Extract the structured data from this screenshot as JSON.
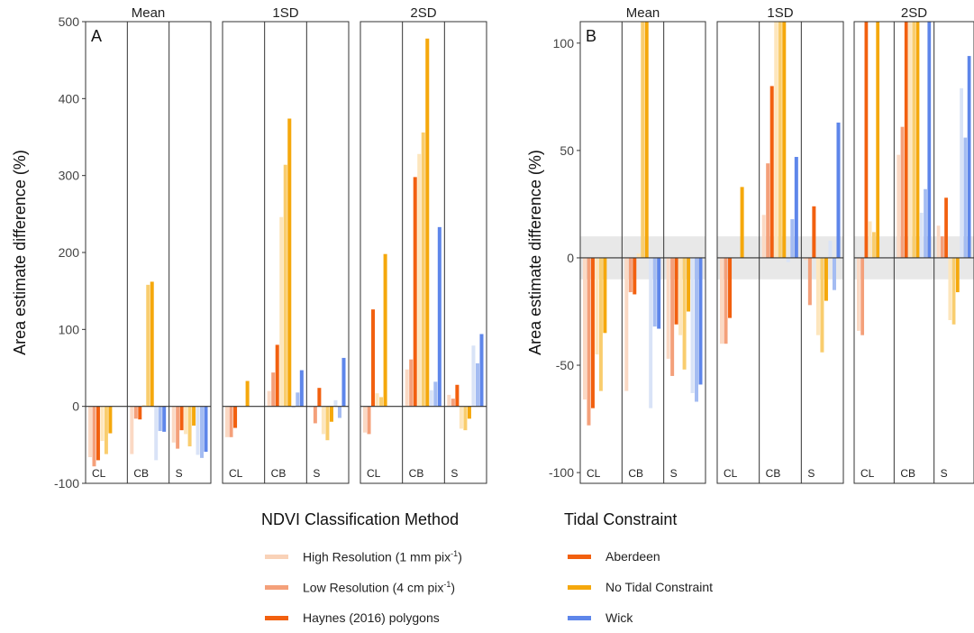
{
  "chart_data": [
    {
      "panel_letter": "A",
      "type": "bar",
      "ylabel": "Area estimate difference (%)",
      "ylim": [
        -100,
        500
      ],
      "yticks": [
        -100,
        0,
        100,
        200,
        300,
        400,
        500
      ],
      "facets": [
        "Mean",
        "1SD",
        "2SD"
      ],
      "sites": [
        "CL",
        "CB",
        "S"
      ],
      "series_order": [
        "hr_ab",
        "lr_ab",
        "hy_ab",
        "hr_nt",
        "lr_nt",
        "hy_nt",
        "hr_wk",
        "lr_wk",
        "hy_wk"
      ],
      "reference_band": null,
      "values": {
        "Mean": {
          "CL": [
            -66,
            -78,
            -70,
            -45,
            -62,
            -35,
            null,
            null,
            null
          ],
          "CB": [
            -62,
            -16,
            -17,
            2,
            158,
            162,
            -70,
            -32,
            -33
          ],
          "S": [
            -47,
            -55,
            -31,
            -36,
            -52,
            -25,
            -63,
            -67,
            -59
          ]
        },
        "1SD": {
          "CL": [
            -40,
            -40,
            -28,
            null,
            null,
            33,
            null,
            null,
            null
          ],
          "CB": [
            20,
            44,
            80,
            246,
            314,
            374,
            -2,
            18,
            47
          ],
          "S": [
            -1,
            -22,
            24,
            -36,
            -44,
            -20,
            8,
            -15,
            63
          ]
        },
        "2SD": {
          "CL": [
            -34,
            -36,
            126,
            17,
            12,
            198,
            null,
            null,
            null
          ],
          "CB": [
            48,
            61,
            298,
            328,
            356,
            478,
            21,
            32,
            233
          ],
          "S": [
            15,
            10,
            28,
            -29,
            -31,
            -16,
            79,
            56,
            94
          ]
        }
      }
    },
    {
      "panel_letter": "B",
      "type": "bar",
      "ylabel": "Area estimate difference (%)",
      "ylim": [
        -105,
        110
      ],
      "yticks": [
        -100,
        -50,
        0,
        50,
        100
      ],
      "facets": [
        "Mean",
        "1SD",
        "2SD"
      ],
      "sites": [
        "CL",
        "CB",
        "S"
      ],
      "series_order": [
        "hr_ab",
        "lr_ab",
        "hy_ab",
        "hr_nt",
        "lr_nt",
        "hy_nt",
        "hr_wk",
        "lr_wk",
        "hy_wk"
      ],
      "reference_band": [
        -10,
        10
      ],
      "values": {
        "Mean": {
          "CL": [
            -66,
            -78,
            -70,
            -45,
            -62,
            -35,
            null,
            null,
            null
          ],
          "CB": [
            -62,
            -16,
            -17,
            2,
            158,
            162,
            -70,
            -32,
            -33
          ],
          "S": [
            -47,
            -55,
            -31,
            -36,
            -52,
            -25,
            -63,
            -67,
            -59
          ]
        },
        "1SD": {
          "CL": [
            -40,
            -40,
            -28,
            null,
            null,
            33,
            null,
            null,
            null
          ],
          "CB": [
            20,
            44,
            80,
            246,
            314,
            374,
            -2,
            18,
            47
          ],
          "S": [
            -1,
            -22,
            24,
            -36,
            -44,
            -20,
            8,
            -15,
            63
          ]
        },
        "2SD": {
          "CL": [
            -34,
            -36,
            126,
            17,
            12,
            198,
            null,
            null,
            null
          ],
          "CB": [
            48,
            61,
            298,
            328,
            356,
            478,
            21,
            32,
            233
          ],
          "S": [
            15,
            10,
            28,
            -29,
            -31,
            -16,
            79,
            56,
            94
          ]
        }
      }
    }
  ],
  "colors": {
    "hr_ab": "#fbd9c4",
    "lr_ab": "#f4a07a",
    "hy_ab": "#f2600f",
    "hr_nt": "#fde6bd",
    "lr_nt": "#f9cd6e",
    "hy_nt": "#f5a80c",
    "hr_wk": "#d9e3f7",
    "lr_wk": "#a4bcf2",
    "hy_wk": "#5e86ea",
    "band": "#e8e8e8",
    "zero_line": "#333333"
  },
  "legend": {
    "method_title": "NDVI Classification Method",
    "tidal_title": "Tidal Constraint",
    "method_items": [
      {
        "pre": "High Resolution (1 mm pix",
        "sup": "-1",
        "post": ")",
        "color": "#f9d2b8"
      },
      {
        "pre": "Low Resolution (4 cm pix",
        "sup": "-1",
        "post": ")",
        "color": "#f4a07a"
      },
      {
        "pre": "Haynes (2016) polygons",
        "sup": "",
        "post": "",
        "color": "#f2600f"
      }
    ],
    "tidal_items": [
      {
        "label": "Aberdeen",
        "color": "#f2600f"
      },
      {
        "label": "No Tidal Constraint",
        "color": "#f5a80c"
      },
      {
        "label": "Wick",
        "color": "#5e86ea"
      }
    ]
  }
}
